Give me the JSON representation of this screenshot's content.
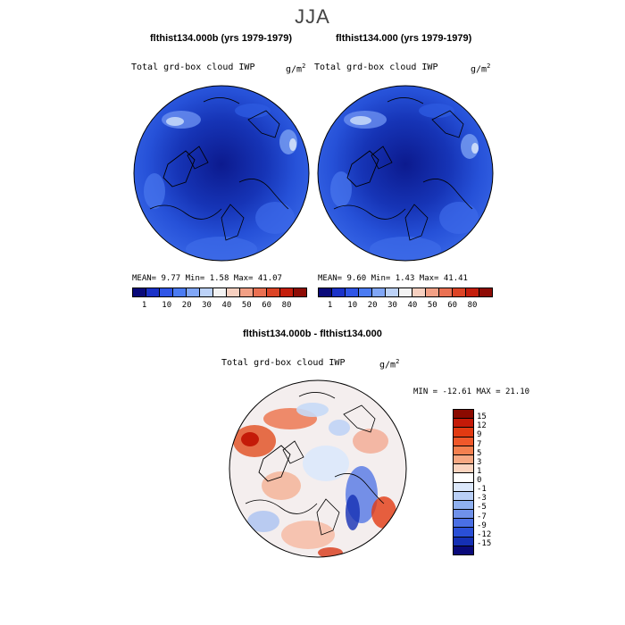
{
  "season": "JJA",
  "panels": [
    {
      "case_title": "flthist134.000b (yrs 1979-1979)",
      "field": "Total grd-box cloud IWP",
      "units": "g/m",
      "units_exp": "2",
      "stats": "MEAN=    9.77  Min=    1.58  Max=   41.07"
    },
    {
      "case_title": "flthist134.000 (yrs 1979-1979)",
      "field": "Total grd-box cloud IWP",
      "units": "g/m",
      "units_exp": "2",
      "stats": "MEAN=    9.60  Min=    1.43  Max=   41.41"
    }
  ],
  "abs_colorbar": {
    "colors": [
      "#0a0a7a",
      "#1b32c8",
      "#2f55e6",
      "#4a7bf2",
      "#80a6f6",
      "#bcd2f8",
      "#f3f3f3",
      "#f7d0c0",
      "#f2a085",
      "#ea7052",
      "#dc4426",
      "#c41e0c",
      "#8e0c06"
    ],
    "ticks": [
      "1",
      "10",
      "20",
      "30",
      "40",
      "50",
      "60",
      "80"
    ]
  },
  "diff": {
    "title": "flthist134.000b - flthist134.000",
    "field": "Total grd-box cloud IWP",
    "units": "g/m",
    "units_exp": "2",
    "minmax": "MIN = -12.61 MAX =  21.10",
    "colors": [
      "#8b0a00",
      "#c41a08",
      "#e23a12",
      "#f0582a",
      "#f4804f",
      "#f7a882",
      "#fbd4bf",
      "#ffffff",
      "#dce8fb",
      "#b9cff6",
      "#8fb0f0",
      "#6f91ea",
      "#4a6fe4",
      "#2a4fd6",
      "#1530b4",
      "#0a0a7a"
    ],
    "ticks": [
      "15",
      "12",
      "9",
      "7",
      "5",
      "3",
      "1",
      "0",
      "-1",
      "-3",
      "-5",
      "-7",
      "-9",
      "-12",
      "-15"
    ]
  }
}
